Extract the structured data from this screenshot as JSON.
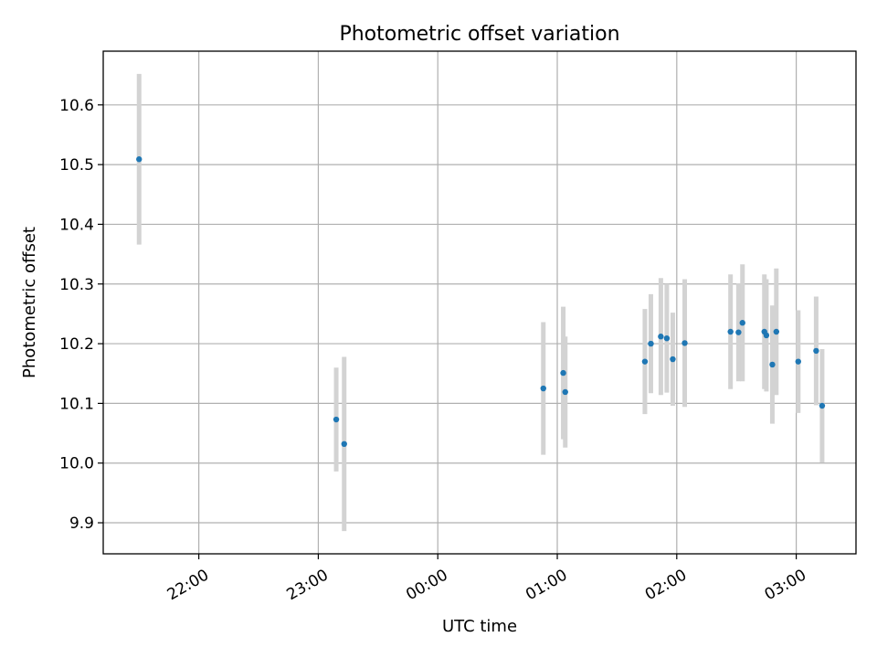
{
  "chart_data": {
    "type": "scatter",
    "title": "Photometric offset variation",
    "xlabel": "UTC time",
    "ylabel": "Photometric offset",
    "xlim": [
      "21:12",
      "03:30"
    ],
    "ylim": [
      9.848,
      10.69
    ],
    "x_ticks": [
      "22:00",
      "23:00",
      "00:00",
      "01:00",
      "02:00",
      "03:00"
    ],
    "y_ticks": [
      "9.9",
      "10.0",
      "10.1",
      "10.2",
      "10.3",
      "10.4",
      "10.5",
      "10.6"
    ],
    "grid": true,
    "colors": {
      "marker": "#1f77b4",
      "errorbar": "#d3d3d3",
      "grid": "#b0b0b0"
    },
    "series": [
      {
        "points": [
          {
            "t": "21:30",
            "y": 10.509,
            "err": 0.143
          },
          {
            "t": "23:09",
            "y": 10.073,
            "err": 0.087
          },
          {
            "t": "23:13",
            "y": 10.032,
            "err": 0.146
          },
          {
            "t": "00:53",
            "y": 10.125,
            "err": 0.111
          },
          {
            "t": "01:03",
            "y": 10.151,
            "err": 0.111
          },
          {
            "t": "01:04",
            "y": 10.119,
            "err": 0.093
          },
          {
            "t": "01:44",
            "y": 10.17,
            "err": 0.088
          },
          {
            "t": "01:47",
            "y": 10.2,
            "err": 0.083
          },
          {
            "t": "01:52",
            "y": 10.212,
            "err": 0.098
          },
          {
            "t": "01:55",
            "y": 10.209,
            "err": 0.091
          },
          {
            "t": "01:58",
            "y": 10.174,
            "err": 0.078
          },
          {
            "t": "02:04",
            "y": 10.201,
            "err": 0.107
          },
          {
            "t": "02:27",
            "y": 10.22,
            "err": 0.096
          },
          {
            "t": "02:31",
            "y": 10.219,
            "err": 0.082
          },
          {
            "t": "02:33",
            "y": 10.235,
            "err": 0.098
          },
          {
            "t": "02:44",
            "y": 10.22,
            "err": 0.096
          },
          {
            "t": "02:45",
            "y": 10.214,
            "err": 0.094
          },
          {
            "t": "02:48",
            "y": 10.165,
            "err": 0.099
          },
          {
            "t": "02:50",
            "y": 10.22,
            "err": 0.106
          },
          {
            "t": "03:01",
            "y": 10.17,
            "err": 0.086
          },
          {
            "t": "03:10",
            "y": 10.188,
            "err": 0.091
          },
          {
            "t": "03:13",
            "y": 10.096,
            "err": 0.095
          }
        ]
      }
    ]
  }
}
